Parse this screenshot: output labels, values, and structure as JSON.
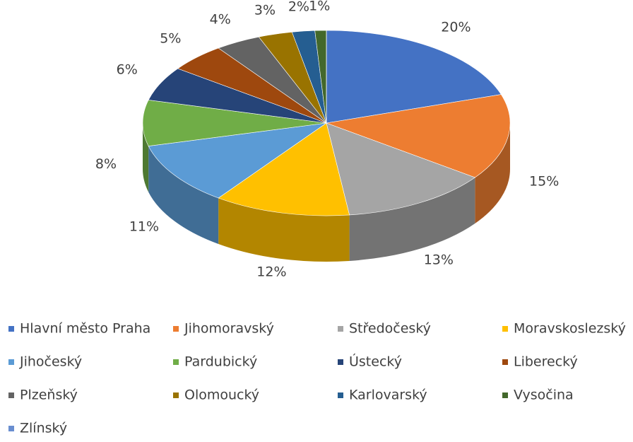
{
  "chart_data": {
    "type": "pie",
    "categories": [
      "Hlavní město Praha",
      "Jihomoravský",
      "Středočeský",
      "Moravskoslezský",
      "Jihočeský",
      "Pardubický",
      "Ústecký",
      "Liberecký",
      "Plzeňský",
      "Olomoucký",
      "Karlovarský",
      "Vysočina",
      "Zlínský"
    ],
    "values": [
      20,
      15,
      13,
      12,
      11,
      8,
      6,
      5,
      4,
      3,
      2,
      1,
      0
    ],
    "value_labels": [
      "20%",
      "15%",
      "13%",
      "12%",
      "11%",
      "8%",
      "6%",
      "5%",
      "4%",
      "3%",
      "2%",
      "1%",
      null
    ],
    "colors": [
      "#4472c4",
      "#ed7d31",
      "#a5a5a5",
      "#ffc000",
      "#5b9bd5",
      "#70ad47",
      "#264478",
      "#9e480e",
      "#636363",
      "#997300",
      "#255e91",
      "#43682b",
      "#698ed0"
    ],
    "legend": "bottom"
  }
}
